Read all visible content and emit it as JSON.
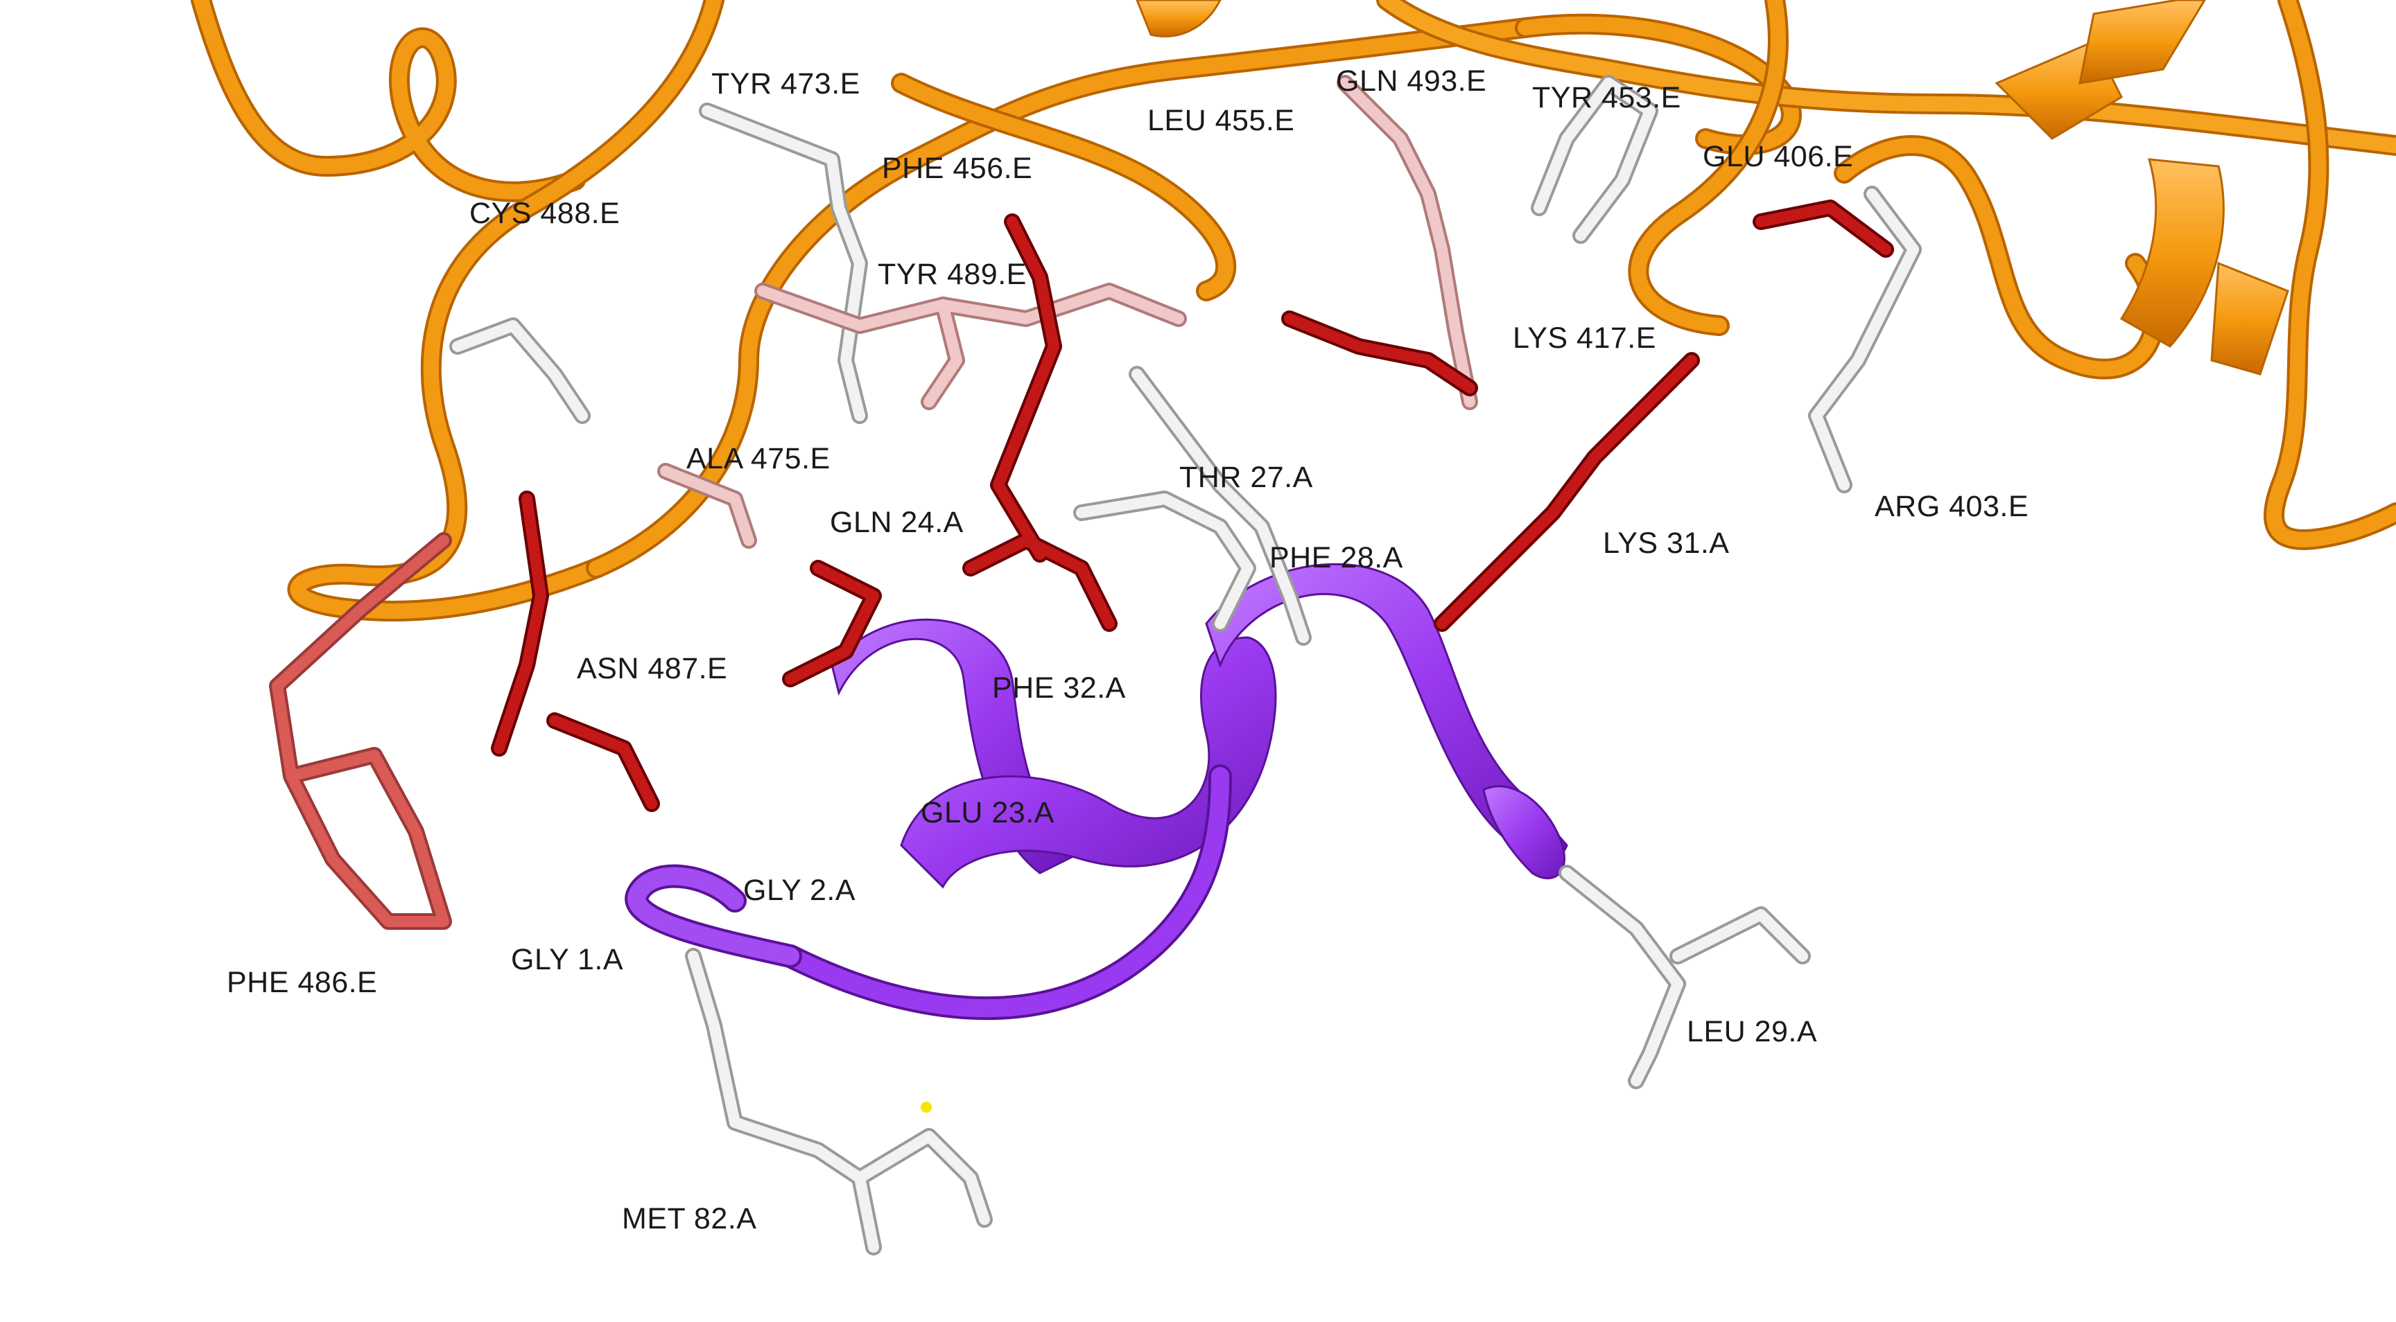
{
  "colors": {
    "receptor_ribbon": "#f08c00",
    "receptor_ribbon_light": "#ffb347",
    "peptide_ribbon": "#8a2be2",
    "peptide_ribbon_light": "#b760ff",
    "residue_dark_red": "#a40000",
    "residue_red": "#d42020",
    "residue_salmon": "#d9534f",
    "residue_pink": "#e8a0a0",
    "residue_light_pink": "#f2c4c4",
    "residue_white": "#ededed",
    "sulfur_yellow": "#f5e600"
  },
  "labels": {
    "tyr473e": "TYR 473.E",
    "gln493e": "GLN 493.E",
    "tyr453e": "TYR 453.E",
    "leu455e": "LEU 455.E",
    "glu406e": "GLU 406.E",
    "phe456e": "PHE 456.E",
    "cys488e": "CYS 488.E",
    "tyr489e": "TYR 489.E",
    "lys417e": "LYS 417.E",
    "ala475e": "ALA 475.E",
    "thr27a": "THR 27.A",
    "arg403e": "ARG 403.E",
    "gln24a": "GLN 24.A",
    "lys31a": "LYS 31.A",
    "phe28a": "PHE 28.A",
    "asn487e": "ASN 487.E",
    "phe32a": "PHE 32.A",
    "glu23a": "GLU 23.A",
    "gly2a": "GLY 2.A",
    "gly1a": "GLY 1.A",
    "phe486e": "PHE 486.E",
    "leu29a": "LEU 29.A",
    "met82a": "MET 82.A"
  }
}
